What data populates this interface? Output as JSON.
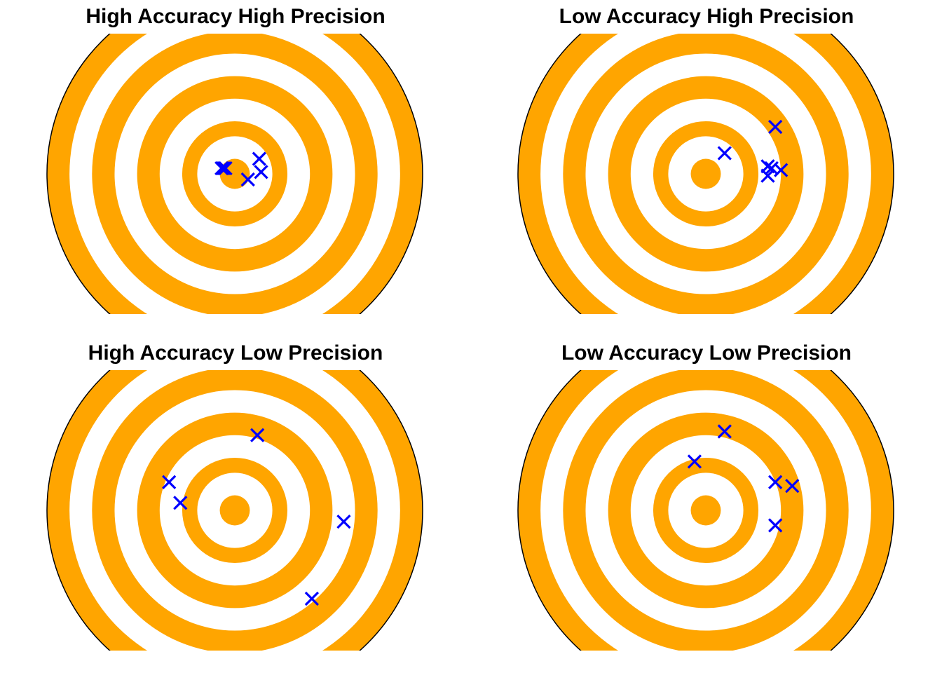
{
  "colors": {
    "ring": "#FFA500",
    "background": "#FFFFFF",
    "marker": "#0000FF",
    "outline": "#000000"
  },
  "chart_data": [
    {
      "type": "scatter",
      "title": "High Accuracy High Precision",
      "xlim": [
        -1,
        1
      ],
      "ylim": [
        -0.8,
        0.8
      ],
      "ring_radii": [
        1.0,
        0.88,
        0.76,
        0.64,
        0.52,
        0.4,
        0.28,
        0.2,
        0.08
      ],
      "grid": false,
      "points": [
        {
          "x": -0.07,
          "y": 0.03
        },
        {
          "x": -0.06,
          "y": 0.03
        },
        {
          "x": -0.05,
          "y": 0.03
        },
        {
          "x": 0.13,
          "y": 0.08
        },
        {
          "x": 0.14,
          "y": 0.01
        },
        {
          "x": 0.07,
          "y": -0.03
        }
      ]
    },
    {
      "type": "scatter",
      "title": "Low Accuracy High Precision",
      "xlim": [
        -1,
        1
      ],
      "ylim": [
        -0.8,
        0.8
      ],
      "ring_radii": [
        1.0,
        0.88,
        0.76,
        0.64,
        0.52,
        0.4,
        0.28,
        0.2,
        0.08
      ],
      "grid": false,
      "points": [
        {
          "x": 0.1,
          "y": 0.11
        },
        {
          "x": 0.37,
          "y": 0.25
        },
        {
          "x": 0.33,
          "y": 0.04
        },
        {
          "x": 0.35,
          "y": 0.03
        },
        {
          "x": 0.4,
          "y": 0.02
        },
        {
          "x": 0.33,
          "y": -0.01
        }
      ]
    },
    {
      "type": "scatter",
      "title": "High Accuracy Low Precision",
      "xlim": [
        -1,
        1
      ],
      "ylim": [
        -0.8,
        0.8
      ],
      "ring_radii": [
        1.0,
        0.88,
        0.76,
        0.64,
        0.52,
        0.4,
        0.28,
        0.2,
        0.08
      ],
      "grid": false,
      "points": [
        {
          "x": 0.12,
          "y": 0.4
        },
        {
          "x": -0.35,
          "y": 0.15
        },
        {
          "x": -0.29,
          "y": 0.04
        },
        {
          "x": 0.58,
          "y": -0.06
        },
        {
          "x": 0.41,
          "y": -0.47
        }
      ]
    },
    {
      "type": "scatter",
      "title": "Low Accuracy Low Precision",
      "xlim": [
        -1,
        1
      ],
      "ylim": [
        -0.8,
        0.8
      ],
      "ring_radii": [
        1.0,
        0.88,
        0.76,
        0.64,
        0.52,
        0.4,
        0.28,
        0.2,
        0.08
      ],
      "grid": false,
      "points": [
        {
          "x": 0.1,
          "y": 0.42
        },
        {
          "x": -0.06,
          "y": 0.26
        },
        {
          "x": 0.37,
          "y": 0.15
        },
        {
          "x": 0.46,
          "y": 0.13
        },
        {
          "x": 0.37,
          "y": -0.08
        }
      ]
    }
  ]
}
